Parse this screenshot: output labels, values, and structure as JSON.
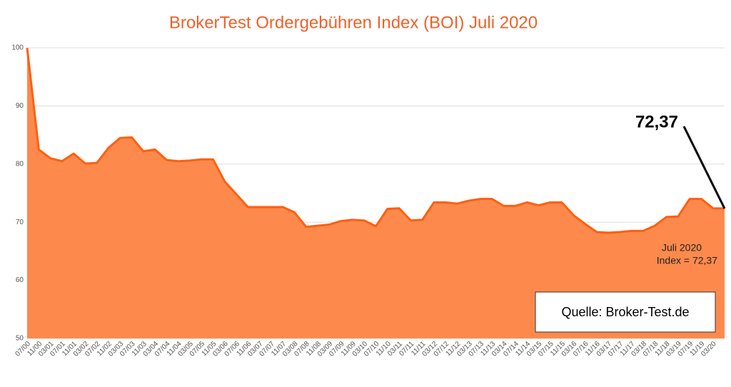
{
  "chart_data": {
    "type": "area",
    "title": "BrokerTest Ordergebühren Index (BOI) Juli 2020",
    "categories": [
      "07/00",
      "11/00",
      "03/01",
      "07/01",
      "11/01",
      "03/02",
      "07/02",
      "11/02",
      "03/03",
      "07/03",
      "11/03",
      "03/04",
      "07/04",
      "11/04",
      "03/05",
      "07/05",
      "11/05",
      "03/06",
      "07/06",
      "11/06",
      "03/07",
      "07/07",
      "11/07",
      "03/08",
      "07/08",
      "11/08",
      "03/09",
      "07/09",
      "11/09",
      "03/10",
      "07/10",
      "11/10",
      "03/11",
      "07/11",
      "11/11",
      "03/12",
      "07/12",
      "11/12",
      "03/13",
      "07/13",
      "11/13",
      "03/14",
      "07/14",
      "11/14",
      "03/15",
      "07/15",
      "11/15",
      "03/16",
      "07/16",
      "11/16",
      "03/17",
      "07/17",
      "11/17",
      "03/18",
      "07/18",
      "11/18",
      "03/19",
      "07/19",
      "11/19",
      "03/20",
      null
    ],
    "values": [
      100,
      82.5,
      81,
      80.5,
      81.8,
      80.1,
      80.2,
      82.8,
      84.5,
      84.6,
      82.2,
      82.5,
      80.7,
      80.5,
      80.6,
      80.8,
      80.8,
      77,
      74.8,
      72.6,
      72.6,
      72.6,
      72.6,
      71.7,
      69.2,
      69.4,
      69.6,
      70.2,
      70.4,
      70.3,
      69.3,
      72.3,
      72.4,
      70.3,
      70.4,
      73.4,
      73.4,
      73.2,
      73.7,
      74,
      74,
      72.8,
      72.8,
      73.4,
      72.9,
      73.4,
      73.4,
      71.2,
      69.7,
      68.3,
      68.2,
      68.3,
      68.5,
      68.5,
      69.4,
      70.9,
      71,
      74,
      74,
      72.4,
      72.37
    ],
    "color": "#fd8a4c",
    "line_color": "#ff5f10",
    "ylim": [
      50,
      100
    ],
    "yticks": [
      50,
      60,
      70,
      80,
      90,
      100
    ],
    "grid": true,
    "annotation_value": "72,37",
    "annotation_lines": [
      "Juli 2020",
      "Index = 72,37"
    ],
    "source": "Quelle: Broker-Test.de"
  }
}
